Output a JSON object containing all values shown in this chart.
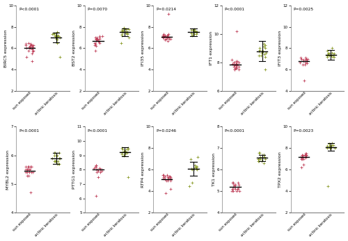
{
  "panels": [
    {
      "gene": "BIRC5",
      "ylabel": "BIRC5 expression",
      "pval": "P<0.0001",
      "ylim": [
        2,
        10
      ],
      "yticks": [
        2,
        4,
        6,
        8,
        10
      ],
      "group1": [
        6.1,
        6.3,
        6.0,
        6.2,
        5.8,
        6.4,
        6.1,
        6.0,
        6.3,
        6.5,
        5.9,
        6.2,
        6.1,
        5.7,
        6.4,
        6.0,
        6.3,
        5.5,
        6.2,
        6.1,
        5.8,
        6.3,
        6.0,
        4.8,
        5.2
      ],
      "group2": [
        7.1,
        7.3,
        7.0,
        6.9,
        7.2,
        7.4,
        7.1,
        7.0,
        6.8,
        7.3,
        7.5,
        7.0,
        6.5,
        5.2,
        7.2,
        7.1
      ],
      "mean1": 6.05,
      "mean2": 7.0,
      "sd1": 0.3,
      "sd2": 0.45
    },
    {
      "gene": "BST2",
      "ylabel": "BST2 expression",
      "pval": "P=0.0070",
      "ylim": [
        2,
        10
      ],
      "yticks": [
        2,
        4,
        6,
        8,
        10
      ],
      "group1": [
        6.8,
        7.0,
        6.5,
        7.1,
        6.9,
        6.7,
        6.4,
        6.8,
        7.0,
        6.6,
        6.9,
        7.1,
        6.3,
        6.8,
        7.0,
        6.5,
        6.2,
        6.7,
        6.9,
        5.8
      ],
      "group2": [
        7.5,
        7.8,
        7.2,
        7.6,
        7.9,
        7.4,
        7.7,
        7.3,
        7.6,
        7.0,
        7.5,
        7.8,
        7.4,
        7.6,
        6.5,
        7.5,
        7.3,
        7.7
      ],
      "mean1": 6.7,
      "mean2": 7.5,
      "sd1": 0.3,
      "sd2": 0.35
    },
    {
      "gene": "IFI35",
      "ylabel": "IFI35 expression",
      "pval": "P=0.0214",
      "ylim": [
        2,
        10
      ],
      "yticks": [
        2,
        4,
        6,
        8,
        10
      ],
      "group1": [
        7.0,
        7.2,
        6.9,
        7.1,
        7.3,
        7.0,
        6.8,
        7.2,
        7.1,
        7.0,
        6.9,
        7.1,
        6.7,
        7.3,
        7.0,
        6.8,
        7.1,
        7.2,
        7.0,
        6.9,
        7.2,
        9.2
      ],
      "group2": [
        7.4,
        7.6,
        7.5,
        7.7,
        7.3,
        7.6,
        7.8,
        7.4,
        7.5,
        7.7,
        7.3,
        7.6,
        7.2,
        7.5
      ],
      "mean1": 7.05,
      "mean2": 7.5,
      "sd1": 0.3,
      "sd2": 0.35
    },
    {
      "gene": "IFT1",
      "ylabel": "IFT1 expression",
      "pval": "P<0.0001",
      "ylim": [
        6,
        12
      ],
      "yticks": [
        6,
        8,
        10,
        12
      ],
      "group1": [
        7.8,
        7.5,
        8.0,
        7.7,
        7.9,
        8.1,
        7.6,
        8.0,
        7.8,
        7.5,
        7.9,
        8.2,
        7.7,
        7.6,
        8.0,
        7.8,
        7.5,
        7.9,
        8.0,
        8.1,
        7.6,
        7.8,
        7.7,
        10.2
      ],
      "group2": [
        8.8,
        9.2,
        8.5,
        8.7,
        9.0,
        8.6,
        9.3,
        8.8,
        8.4,
        9.1,
        8.7,
        8.9,
        7.5,
        9.0,
        8.8,
        8.5
      ],
      "mean1": 7.85,
      "mean2": 8.8,
      "sd1": 0.5,
      "sd2": 0.7
    },
    {
      "gene": "IFIT3",
      "ylabel": "IFIT3 expression",
      "pval": "P=0.0025",
      "ylim": [
        4,
        12
      ],
      "yticks": [
        4,
        6,
        8,
        10,
        12
      ],
      "group1": [
        6.8,
        7.0,
        6.5,
        6.9,
        7.1,
        6.7,
        6.8,
        6.9,
        6.6,
        7.0,
        6.8,
        6.7,
        6.5,
        7.1,
        7.0,
        5.0
      ],
      "group2": [
        7.3,
        7.5,
        7.2,
        7.4,
        7.6,
        7.3,
        7.5,
        7.2,
        7.8,
        7.4,
        7.6,
        7.3,
        7.5,
        7.2,
        8.0
      ],
      "mean1": 6.8,
      "mean2": 7.4,
      "sd1": 0.3,
      "sd2": 0.45
    },
    {
      "gene": "MYBL2",
      "ylabel": "MYBL2 expression",
      "pval": "P<0.0001",
      "ylim": [
        4,
        7
      ],
      "yticks": [
        4,
        5,
        6,
        7
      ],
      "group1": [
        5.5,
        5.6,
        5.4,
        5.5,
        5.6,
        5.3,
        5.5,
        5.4,
        5.6,
        5.5,
        5.4,
        5.6,
        5.5,
        5.4,
        5.5,
        5.6,
        5.3,
        5.5,
        5.4,
        5.6,
        4.7
      ],
      "group2": [
        5.8,
        6.0,
        5.7,
        5.9,
        6.1,
        5.8,
        6.0,
        5.9,
        5.7,
        6.1,
        5.8,
        6.0,
        5.9,
        5.7,
        6.1,
        5.8
      ],
      "mean1": 5.45,
      "mean2": 5.9,
      "sd1": 0.15,
      "sd2": 0.2
    },
    {
      "gene": "PTTG1",
      "ylabel": "PTTG1 expression",
      "pval": "P<0.0001",
      "ylim": [
        5,
        11
      ],
      "yticks": [
        5,
        6,
        7,
        8,
        9,
        10,
        11
      ],
      "group1": [
        8.0,
        8.2,
        7.9,
        8.1,
        8.3,
        8.0,
        7.8,
        8.2,
        8.0,
        7.9,
        8.1,
        8.3,
        8.0,
        7.8,
        7.5,
        6.2
      ],
      "group2": [
        9.2,
        9.4,
        9.1,
        9.3,
        9.5,
        9.2,
        9.0,
        9.3,
        9.4,
        9.2,
        9.1,
        9.3,
        9.5,
        9.2,
        9.4,
        7.5
      ],
      "mean1": 8.0,
      "mean2": 9.25,
      "sd1": 0.2,
      "sd2": 0.3
    },
    {
      "gene": "RTP4",
      "ylabel": "RTP4 expression",
      "pval": "P=0.0246",
      "ylim": [
        2,
        10
      ],
      "yticks": [
        2,
        4,
        6,
        8,
        10
      ],
      "group1": [
        5.2,
        5.5,
        5.0,
        5.3,
        5.4,
        5.1,
        5.3,
        5.5,
        5.0,
        5.2,
        5.4,
        5.1,
        5.3,
        5.5,
        5.0,
        5.2,
        5.4,
        3.8,
        4.2
      ],
      "group2": [
        6.1,
        6.3,
        6.0,
        6.2,
        6.4,
        6.1,
        6.0,
        6.3,
        6.1,
        4.5,
        4.8,
        7.0,
        7.2
      ],
      "mean1": 5.15,
      "mean2": 6.1,
      "sd1": 0.4,
      "sd2": 0.65
    },
    {
      "gene": "TK1",
      "ylabel": "TK1 expression",
      "pval": "P<0.0001",
      "ylim": [
        4,
        8
      ],
      "yticks": [
        4,
        5,
        6,
        7,
        8
      ],
      "group1": [
        5.1,
        5.3,
        5.0,
        5.2,
        5.4,
        5.1,
        5.0,
        5.3,
        5.2,
        5.1,
        5.4,
        5.0,
        5.3,
        5.2,
        5.1,
        5.3,
        5.0,
        5.2,
        5.4,
        5.1
      ],
      "group2": [
        6.5,
        6.7,
        6.4,
        6.6,
        6.8,
        6.5,
        6.4,
        6.7,
        6.5,
        6.4,
        6.7,
        6.5,
        6.3,
        6.6,
        6.8,
        6.5
      ],
      "mean1": 5.2,
      "mean2": 6.55,
      "sd1": 0.15,
      "sd2": 0.15
    },
    {
      "gene": "TPX2",
      "ylabel": "TPX2 expression",
      "pval": "P=0.0023",
      "ylim": [
        2,
        10
      ],
      "yticks": [
        2,
        4,
        6,
        8,
        10
      ],
      "group1": [
        7.2,
        7.4,
        7.0,
        7.3,
        7.5,
        7.1,
        7.3,
        7.0,
        7.4,
        7.2,
        7.1,
        7.3,
        7.5,
        7.0,
        7.2,
        7.4,
        7.1,
        7.3,
        6.2,
        6.5
      ],
      "group2": [
        8.1,
        8.3,
        8.0,
        8.2,
        8.4,
        8.1,
        8.0,
        8.3,
        8.2,
        8.0,
        8.3,
        8.1,
        8.5,
        8.2,
        4.5,
        8.0
      ],
      "mean1": 7.2,
      "mean2": 8.1,
      "sd1": 0.35,
      "sd2": 0.35
    }
  ],
  "color_group1": "#C0415B",
  "color_group2": "#8B9B2A",
  "marker_size": 5,
  "bg_color": "#ffffff"
}
